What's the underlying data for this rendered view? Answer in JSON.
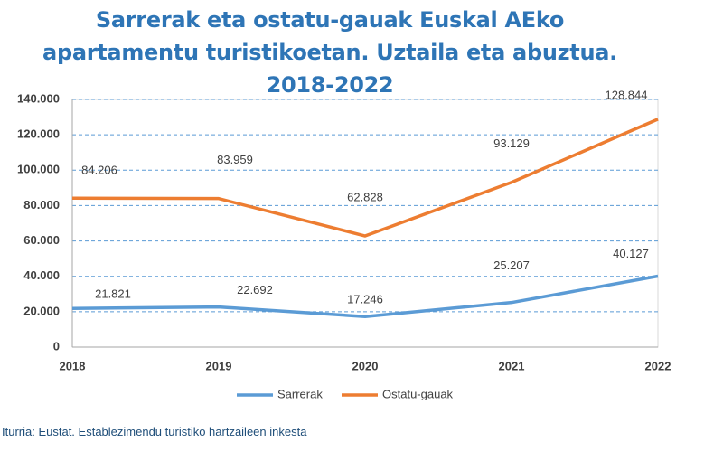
{
  "chart_data": {
    "type": "line",
    "title": "Sarrerak eta ostatu-gauak Euskal AEko apartamentu turistikoetan. Uztaila eta abuztua. 2018-2022",
    "categories": [
      "2018",
      "2019",
      "2020",
      "2021",
      "2022"
    ],
    "series": [
      {
        "name": "Sarrerak",
        "color": "#5b9bd5",
        "values": [
          21821,
          22692,
          17246,
          25207,
          40127
        ],
        "value_labels": [
          "21.821",
          "22.692",
          "17.246",
          "25.207",
          "40.127"
        ]
      },
      {
        "name": "Ostatu-gauak",
        "color": "#ed7d31",
        "values": [
          84206,
          83959,
          62828,
          93129,
          128844
        ],
        "value_labels": [
          "84.206",
          "83.959",
          "62.828",
          "93.129",
          "128.844"
        ]
      }
    ],
    "ylim": [
      0,
      140000
    ],
    "yticks": [
      0,
      {
        "value": 20000,
        "label": "20.000"
      },
      {
        "value": 40000,
        "label": "40.000"
      },
      {
        "value": 60000,
        "label": "60.000"
      },
      {
        "value": 80000,
        "label": "80.000"
      },
      {
        "value": 100000,
        "label": "100.000"
      },
      {
        "value": 120000,
        "label": "120.000"
      },
      {
        "value": 140000,
        "label": "140.000"
      }
    ],
    "grid": true,
    "legend": "bottom",
    "source": "Iturria: Eustat. Establezimendu turistiko hartzaileen inkesta"
  }
}
